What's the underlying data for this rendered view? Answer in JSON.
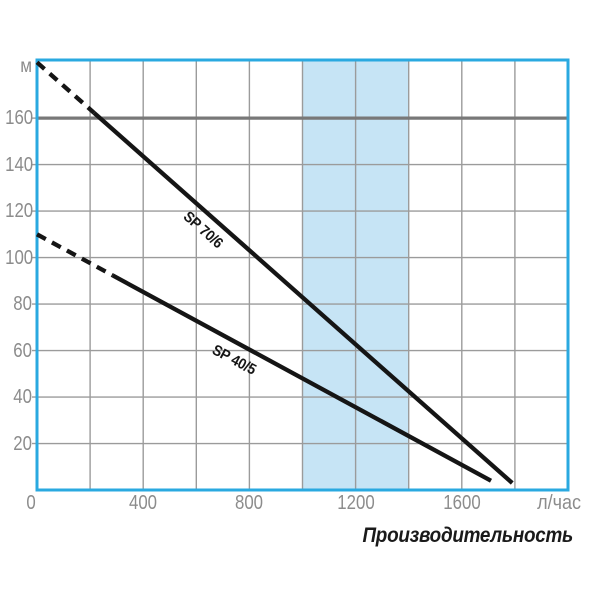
{
  "chart_data": {
    "type": "line",
    "title": "Производительность",
    "ylabel": "м",
    "xlabel": "л/час",
    "xlim": [
      0,
      2000
    ],
    "ylim": [
      0,
      185
    ],
    "x_tick_labels": [
      0,
      400,
      800,
      1200,
      1600
    ],
    "x_grid_step": 200,
    "y_tick_labels": [
      20,
      40,
      60,
      80,
      100,
      120,
      140,
      160
    ],
    "y_grid_step": 20,
    "grid": true,
    "working_range_band": {
      "x_from": 1000,
      "x_to": 1400,
      "color": "#c6e4f5"
    },
    "max_head_line": {
      "y": 160,
      "color": "#787878",
      "width": 3.2
    },
    "series": [
      {
        "name": "SP 70/6",
        "points": [
          [
            0,
            184
          ],
          [
            1790,
            3
          ]
        ],
        "dashed_until_x": 215,
        "label": {
          "x": 625,
          "y": 112,
          "angle": 41.5
        }
      },
      {
        "name": "SP 40/5",
        "points": [
          [
            0,
            110
          ],
          [
            1710,
            4
          ]
        ],
        "dashed_until_x": 285,
        "label": {
          "x": 742,
          "y": 56,
          "angle": 28
        }
      }
    ],
    "colors": {
      "axis_border": "#2aa9e0",
      "grid": "#9b9b9b",
      "tick_text": "#8c8c8c",
      "curve": "#151515",
      "band": "#c6e4f5",
      "max_head": "#787878",
      "title_text": "#1a1a1a"
    }
  }
}
